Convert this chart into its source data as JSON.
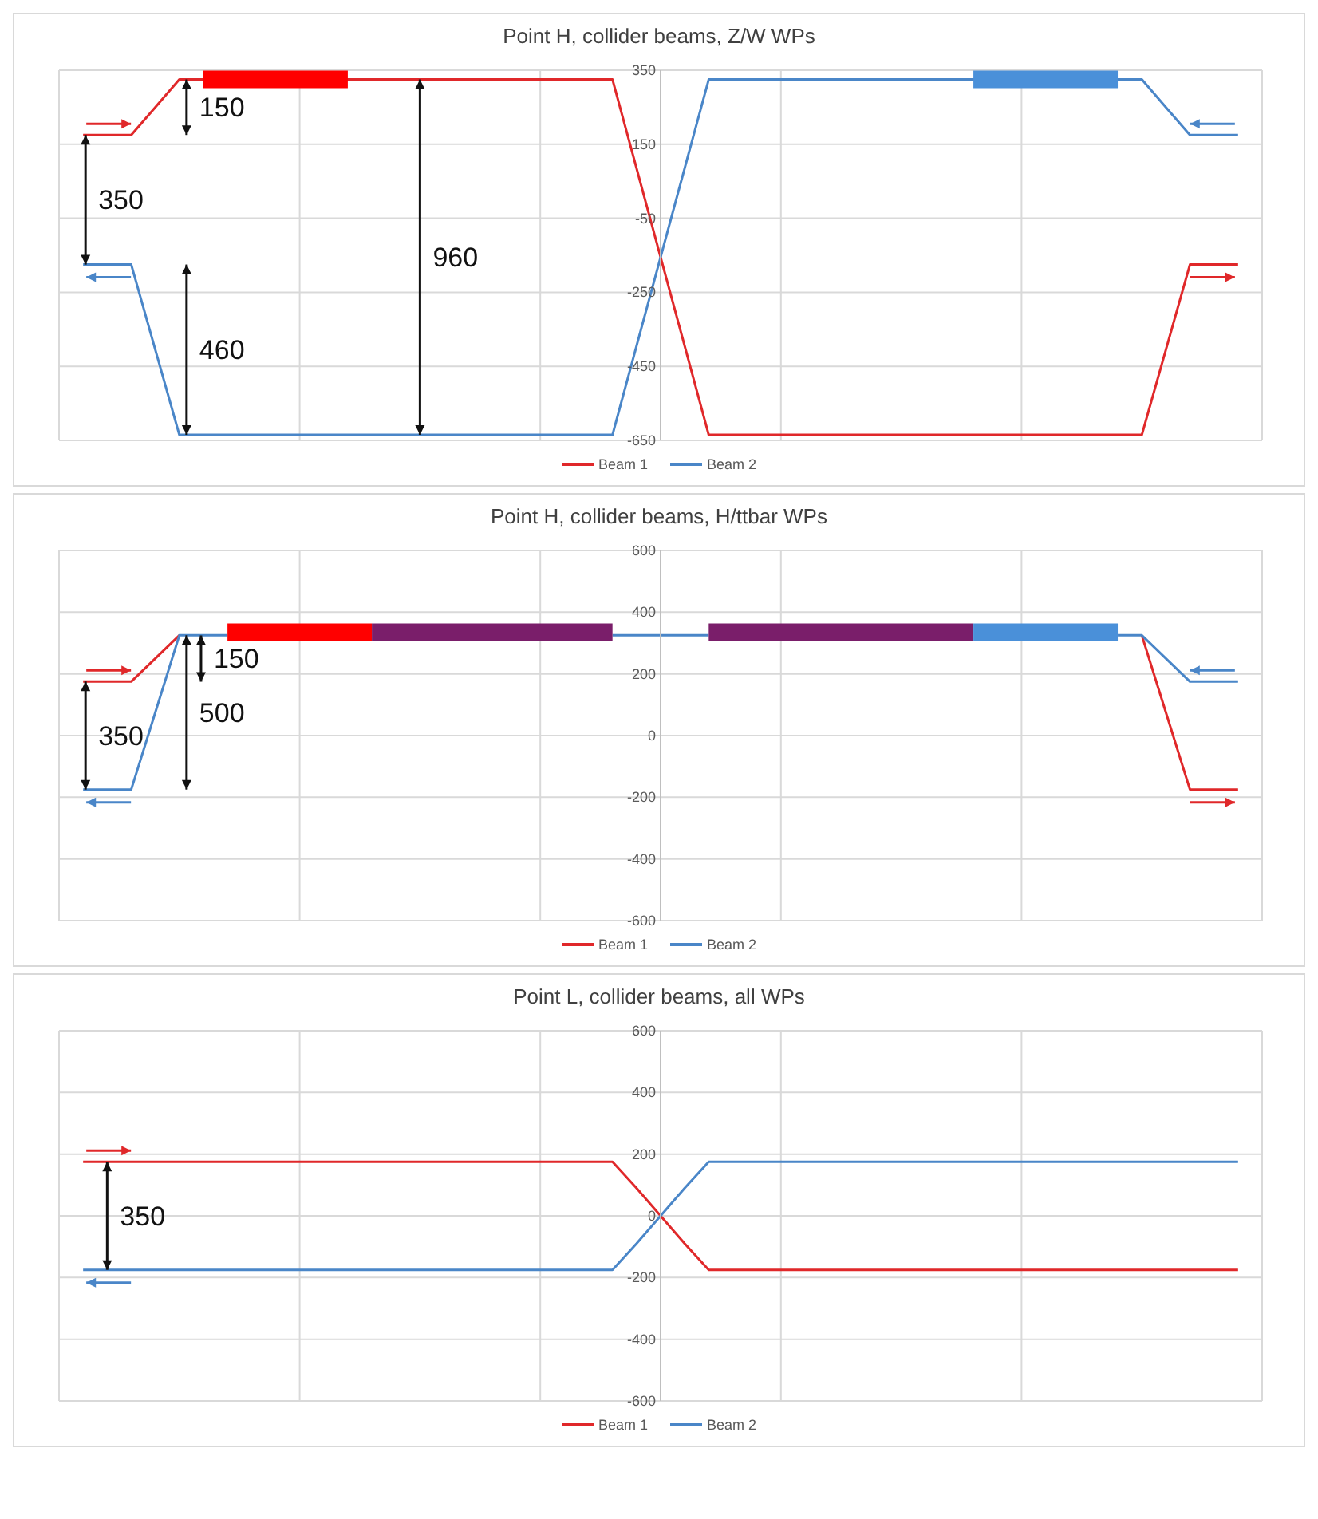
{
  "chart_data": [
    {
      "type": "line",
      "title": "Point H, collider beams, Z/W WPs",
      "categories": [
        null,
        null,
        null,
        null,
        null,
        null,
        null,
        null,
        null,
        null,
        null,
        null,
        null,
        null,
        null,
        null,
        null,
        null,
        null,
        null,
        null,
        null,
        null,
        null,
        null,
        null,
        null,
        null,
        null,
        null,
        null,
        null,
        null,
        null,
        null,
        null,
        null,
        null,
        null,
        null,
        null,
        null,
        null,
        null,
        null,
        null,
        null,
        null,
        null
      ],
      "ylim": [
        -650,
        350
      ],
      "yticks": [
        -650,
        -450,
        -250,
        -50,
        150,
        350
      ],
      "grid": true,
      "legend": "bottom",
      "marker": "none",
      "line_style": "solid",
      "series": [
        {
          "name": "Beam 1",
          "color": "#e0282a",
          "values": [
            175,
            175,
            175,
            250,
            325,
            325,
            325,
            325,
            325,
            325,
            325,
            325,
            325,
            325,
            325,
            325,
            325,
            325,
            325,
            325,
            325,
            325,
            325,
            85,
            -155,
            -395,
            -635,
            -635,
            -635,
            -635,
            -635,
            -635,
            -635,
            -635,
            -635,
            -635,
            -635,
            -635,
            -635,
            -635,
            -635,
            -635,
            -635,
            -635,
            -635,
            -405,
            -175,
            -175,
            -175
          ]
        },
        {
          "name": "Beam 2",
          "color": "#4a86c8",
          "values": [
            -175,
            -175,
            -175,
            -405,
            -635,
            -635,
            -635,
            -635,
            -635,
            -635,
            -635,
            -635,
            -635,
            -635,
            -635,
            -635,
            -635,
            -635,
            -635,
            -635,
            -635,
            -635,
            -635,
            -395,
            -155,
            85,
            325,
            325,
            325,
            325,
            325,
            325,
            325,
            325,
            325,
            325,
            325,
            325,
            325,
            325,
            325,
            325,
            325,
            325,
            325,
            250,
            175,
            175,
            175
          ]
        },
        {
          "color": "#ff0000",
          "values": [
            null,
            null,
            null,
            null,
            null,
            325,
            325,
            325,
            325,
            325,
            325,
            325,
            null,
            null,
            null,
            null,
            null,
            null,
            null,
            null,
            null,
            null,
            null,
            null,
            null,
            null,
            null,
            null,
            null,
            null,
            null,
            null,
            null,
            null,
            null,
            null,
            null,
            null,
            null,
            null,
            null,
            null,
            null,
            null,
            null,
            null,
            null,
            null,
            null
          ]
        },
        {
          "color": "#4a90d9",
          "values": [
            null,
            null,
            null,
            null,
            null,
            null,
            null,
            null,
            null,
            null,
            null,
            null,
            null,
            null,
            null,
            null,
            null,
            null,
            null,
            null,
            null,
            null,
            null,
            null,
            null,
            null,
            null,
            null,
            null,
            null,
            null,
            null,
            null,
            null,
            null,
            null,
            null,
            325,
            325,
            325,
            325,
            325,
            325,
            325,
            null,
            null,
            null,
            null,
            null
          ]
        }
      ],
      "annotations": [
        "150",
        "350",
        "460",
        "960"
      ]
    },
    {
      "type": "line",
      "title": "Point H, collider beams, H/ttbar WPs",
      "categories": [
        null,
        null,
        null,
        null,
        null,
        null,
        null,
        null,
        null,
        null,
        null,
        null,
        null,
        null,
        null,
        null,
        null,
        null,
        null,
        null,
        null,
        null,
        null,
        null,
        null,
        null,
        null,
        null,
        null,
        null,
        null,
        null,
        null,
        null,
        null,
        null,
        null,
        null,
        null,
        null,
        null,
        null,
        null,
        null,
        null,
        null,
        null,
        null,
        null
      ],
      "ylim": [
        -600,
        600
      ],
      "yticks": [
        -600,
        -400,
        -200,
        0,
        200,
        400,
        600
      ],
      "grid": true,
      "legend": "bottom",
      "marker": "none",
      "line_style": "solid",
      "series": [
        {
          "name": "Beam 1",
          "color": "#e0282a",
          "values": [
            175,
            175,
            175,
            250,
            325,
            null,
            null,
            null,
            null,
            null,
            null,
            null,
            null,
            null,
            null,
            null,
            null,
            null,
            null,
            null,
            null,
            null,
            null,
            null,
            null,
            null,
            null,
            null,
            null,
            null,
            null,
            null,
            null,
            null,
            null,
            null,
            null,
            null,
            null,
            null,
            null,
            null,
            null,
            null,
            325,
            75,
            -175,
            -175,
            -175
          ]
        },
        {
          "name": "Beam 2",
          "color": "#4a86c8",
          "values": [
            -175,
            -175,
            -175,
            75,
            325,
            325,
            325,
            null,
            null,
            null,
            null,
            null,
            null,
            null,
            null,
            null,
            null,
            null,
            null,
            null,
            null,
            null,
            325,
            325,
            325,
            325,
            325,
            null,
            null,
            null,
            null,
            null,
            null,
            null,
            null,
            null,
            null,
            null,
            null,
            null,
            null,
            null,
            null,
            325,
            325,
            250,
            175,
            175,
            175
          ]
        },
        {
          "color": "#ff0000",
          "values": [
            null,
            null,
            null,
            null,
            null,
            null,
            335,
            335,
            335,
            335,
            335,
            335,
            335,
            null,
            null,
            null,
            null,
            null,
            null,
            null,
            null,
            null,
            null,
            null,
            null,
            null,
            null,
            null,
            null,
            null,
            null,
            null,
            null,
            null,
            null,
            null,
            null,
            null,
            null,
            null,
            null,
            null,
            null,
            null,
            null,
            null,
            null,
            null,
            null
          ]
        },
        {
          "color": "#7a1e6a",
          "values": [
            null,
            null,
            null,
            null,
            null,
            null,
            null,
            null,
            null,
            null,
            null,
            null,
            335,
            335,
            335,
            335,
            335,
            335,
            335,
            335,
            335,
            335,
            335,
            null,
            null,
            null,
            null,
            null,
            null,
            null,
            null,
            null,
            null,
            null,
            null,
            null,
            null,
            null,
            null,
            null,
            null,
            null,
            null,
            null,
            null,
            null,
            null,
            null,
            null
          ]
        },
        {
          "color": "#7a1e6a",
          "values": [
            null,
            null,
            null,
            null,
            null,
            null,
            null,
            null,
            null,
            null,
            null,
            null,
            null,
            null,
            null,
            null,
            null,
            null,
            null,
            null,
            null,
            null,
            null,
            null,
            null,
            null,
            335,
            335,
            335,
            335,
            335,
            335,
            335,
            335,
            335,
            335,
            335,
            335,
            null,
            null,
            null,
            null,
            null,
            null,
            null,
            null,
            null,
            null,
            null
          ]
        },
        {
          "color": "#4a90d9",
          "values": [
            null,
            null,
            null,
            null,
            null,
            null,
            null,
            null,
            null,
            null,
            null,
            null,
            null,
            null,
            null,
            null,
            null,
            null,
            null,
            null,
            null,
            null,
            null,
            null,
            null,
            null,
            null,
            null,
            null,
            null,
            null,
            null,
            null,
            null,
            null,
            null,
            null,
            335,
            335,
            335,
            335,
            335,
            335,
            335,
            null,
            null,
            null,
            null,
            null
          ]
        }
      ],
      "annotations": [
        "150",
        "350",
        "500"
      ]
    },
    {
      "type": "line",
      "title": "Point L, collider beams, all WPs",
      "categories": [
        null,
        null,
        null,
        null,
        null,
        null,
        null,
        null,
        null,
        null,
        null,
        null,
        null,
        null,
        null,
        null,
        null,
        null,
        null,
        null,
        null,
        null,
        null,
        null,
        null,
        null,
        null,
        null,
        null,
        null,
        null,
        null,
        null,
        null,
        null,
        null,
        null,
        null,
        null,
        null,
        null,
        null,
        null,
        null,
        null,
        null,
        null,
        null,
        null
      ],
      "ylim": [
        -600,
        600
      ],
      "yticks": [
        -600,
        -400,
        -200,
        0,
        200,
        400,
        600
      ],
      "grid": true,
      "legend": "bottom",
      "marker": "none",
      "line_style": "solid",
      "series": [
        {
          "name": "Beam 1",
          "color": "#e0282a",
          "values": [
            175,
            175,
            175,
            175,
            175,
            175,
            175,
            175,
            175,
            175,
            175,
            175,
            175,
            175,
            175,
            175,
            175,
            175,
            175,
            175,
            175,
            175,
            175,
            90,
            0,
            -90,
            -175,
            -175,
            -175,
            -175,
            -175,
            -175,
            -175,
            -175,
            -175,
            -175,
            -175,
            -175,
            -175,
            -175,
            -175,
            -175,
            -175,
            -175,
            -175,
            -175,
            -175,
            -175,
            -175
          ]
        },
        {
          "name": "Beam 2",
          "color": "#4a86c8",
          "values": [
            -175,
            -175,
            -175,
            -175,
            -175,
            -175,
            -175,
            -175,
            -175,
            -175,
            -175,
            -175,
            -175,
            -175,
            -175,
            -175,
            -175,
            -175,
            -175,
            -175,
            -175,
            -175,
            -175,
            -90,
            0,
            90,
            175,
            175,
            175,
            175,
            175,
            175,
            175,
            175,
            175,
            175,
            175,
            175,
            175,
            175,
            175,
            175,
            175,
            175,
            175,
            175,
            175,
            175,
            175
          ]
        }
      ],
      "annotations": [
        "350"
      ]
    }
  ]
}
